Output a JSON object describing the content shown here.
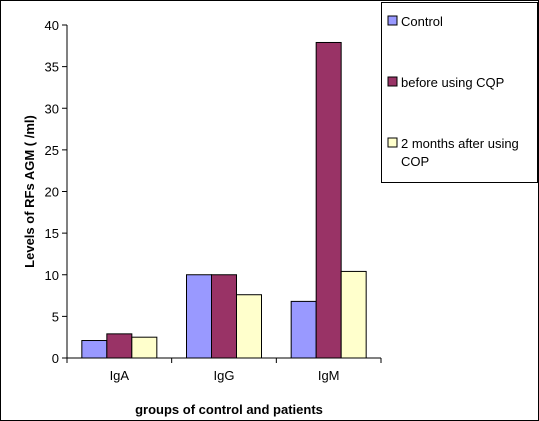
{
  "chart_data": {
    "type": "bar",
    "categories": [
      "IgA",
      "IgG",
      "IgM"
    ],
    "series": [
      {
        "name": "Control",
        "values": [
          2.1,
          10.0,
          6.8
        ],
        "color": "#9999ff"
      },
      {
        "name": "before using CQP",
        "values": [
          2.9,
          10.0,
          37.9
        ],
        "color": "#993366"
      },
      {
        "name": "2 months after using COP",
        "values": [
          2.5,
          7.6,
          10.4
        ],
        "color": "#ffffcc"
      }
    ],
    "title": "",
    "xlabel": "groups of control and patients",
    "ylabel": "Levels of RFs AGM (   /ml)",
    "ylim": [
      0,
      40
    ],
    "yticks": [
      0,
      5,
      10,
      15,
      20,
      25,
      30,
      35,
      40
    ],
    "grid": false,
    "legend_position": "right"
  }
}
